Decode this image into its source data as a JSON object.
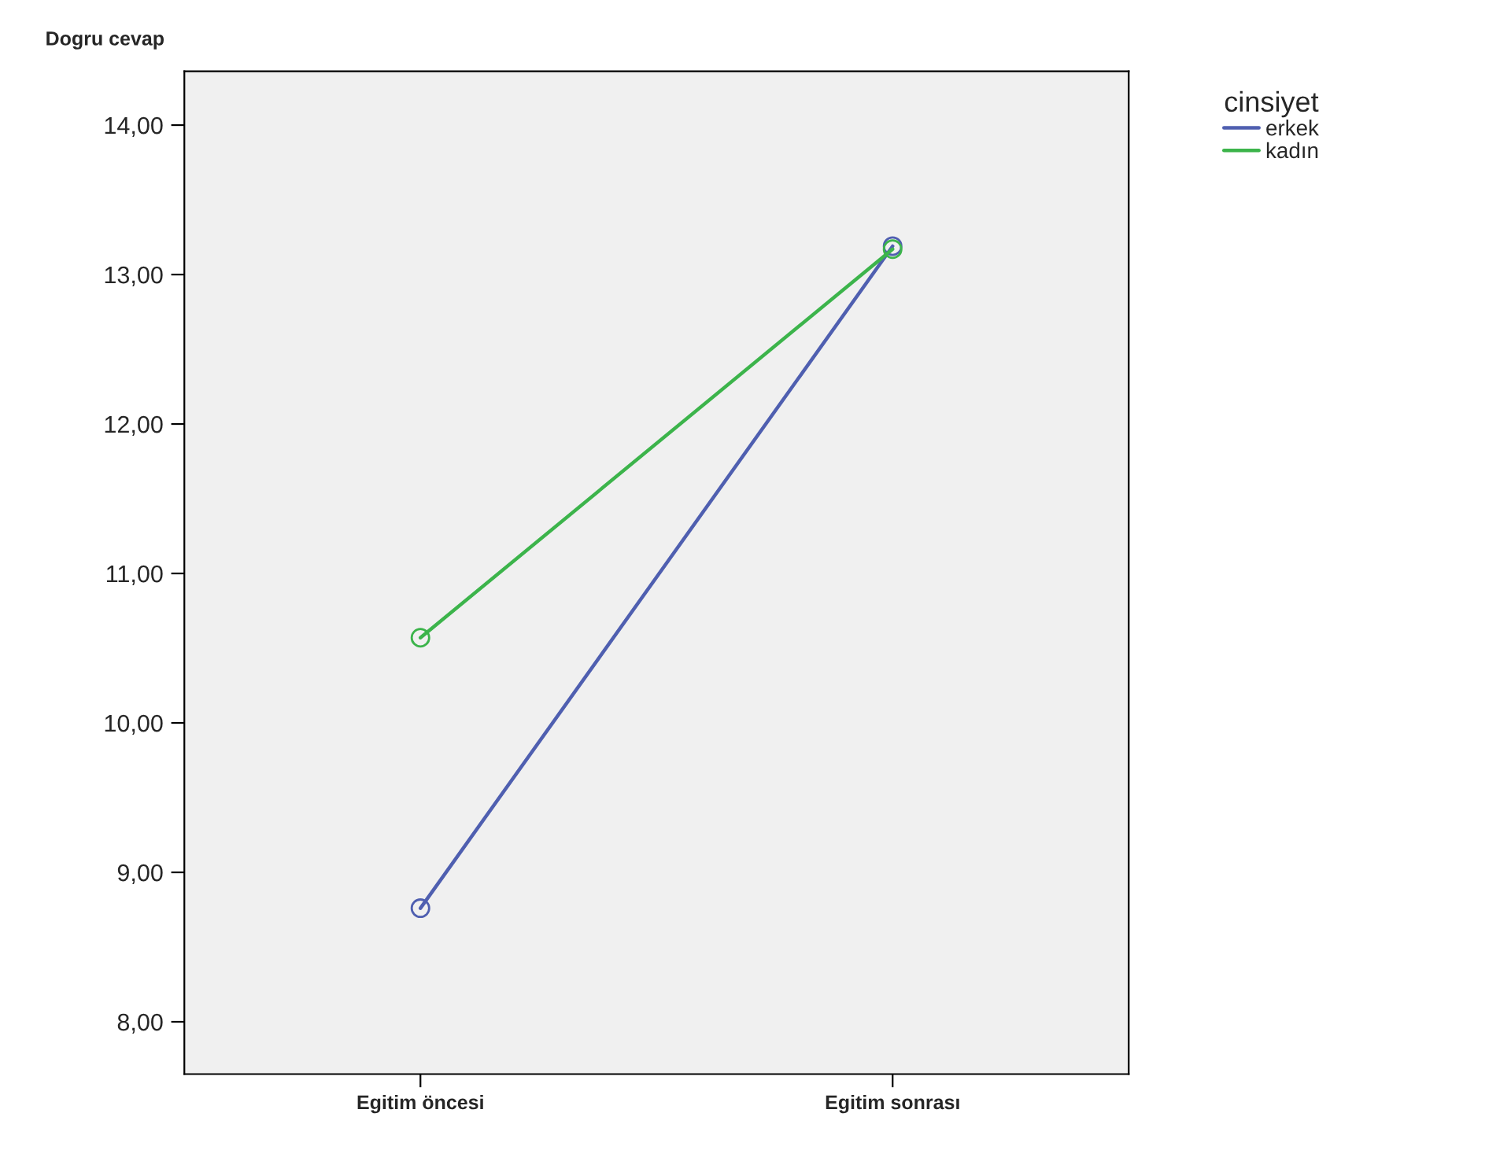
{
  "chart_data": {
    "type": "line",
    "ylabel": "Dogru cevap",
    "legend_title": "cinsiyet",
    "categories": [
      "Egitim öncesi",
      "Egitim sonrası"
    ],
    "series": [
      {
        "name": "erkek",
        "color": "#4f5fb0",
        "values": [
          8.76,
          13.19
        ]
      },
      {
        "name": "kadın",
        "color": "#3cb44b",
        "values": [
          10.57,
          13.17
        ]
      }
    ],
    "ylim": [
      7.65,
      14.36
    ],
    "yticks": [
      {
        "value": 8,
        "label": "8,00"
      },
      {
        "value": 9,
        "label": "9,00"
      },
      {
        "value": 10,
        "label": "10,00"
      },
      {
        "value": 11,
        "label": "11,00"
      },
      {
        "value": 12,
        "label": "12,00"
      },
      {
        "value": 13,
        "label": "13,00"
      },
      {
        "value": 14,
        "label": "14,00"
      }
    ],
    "marker": "circle",
    "line_style": "solid",
    "grid": false,
    "legend": "top right"
  }
}
